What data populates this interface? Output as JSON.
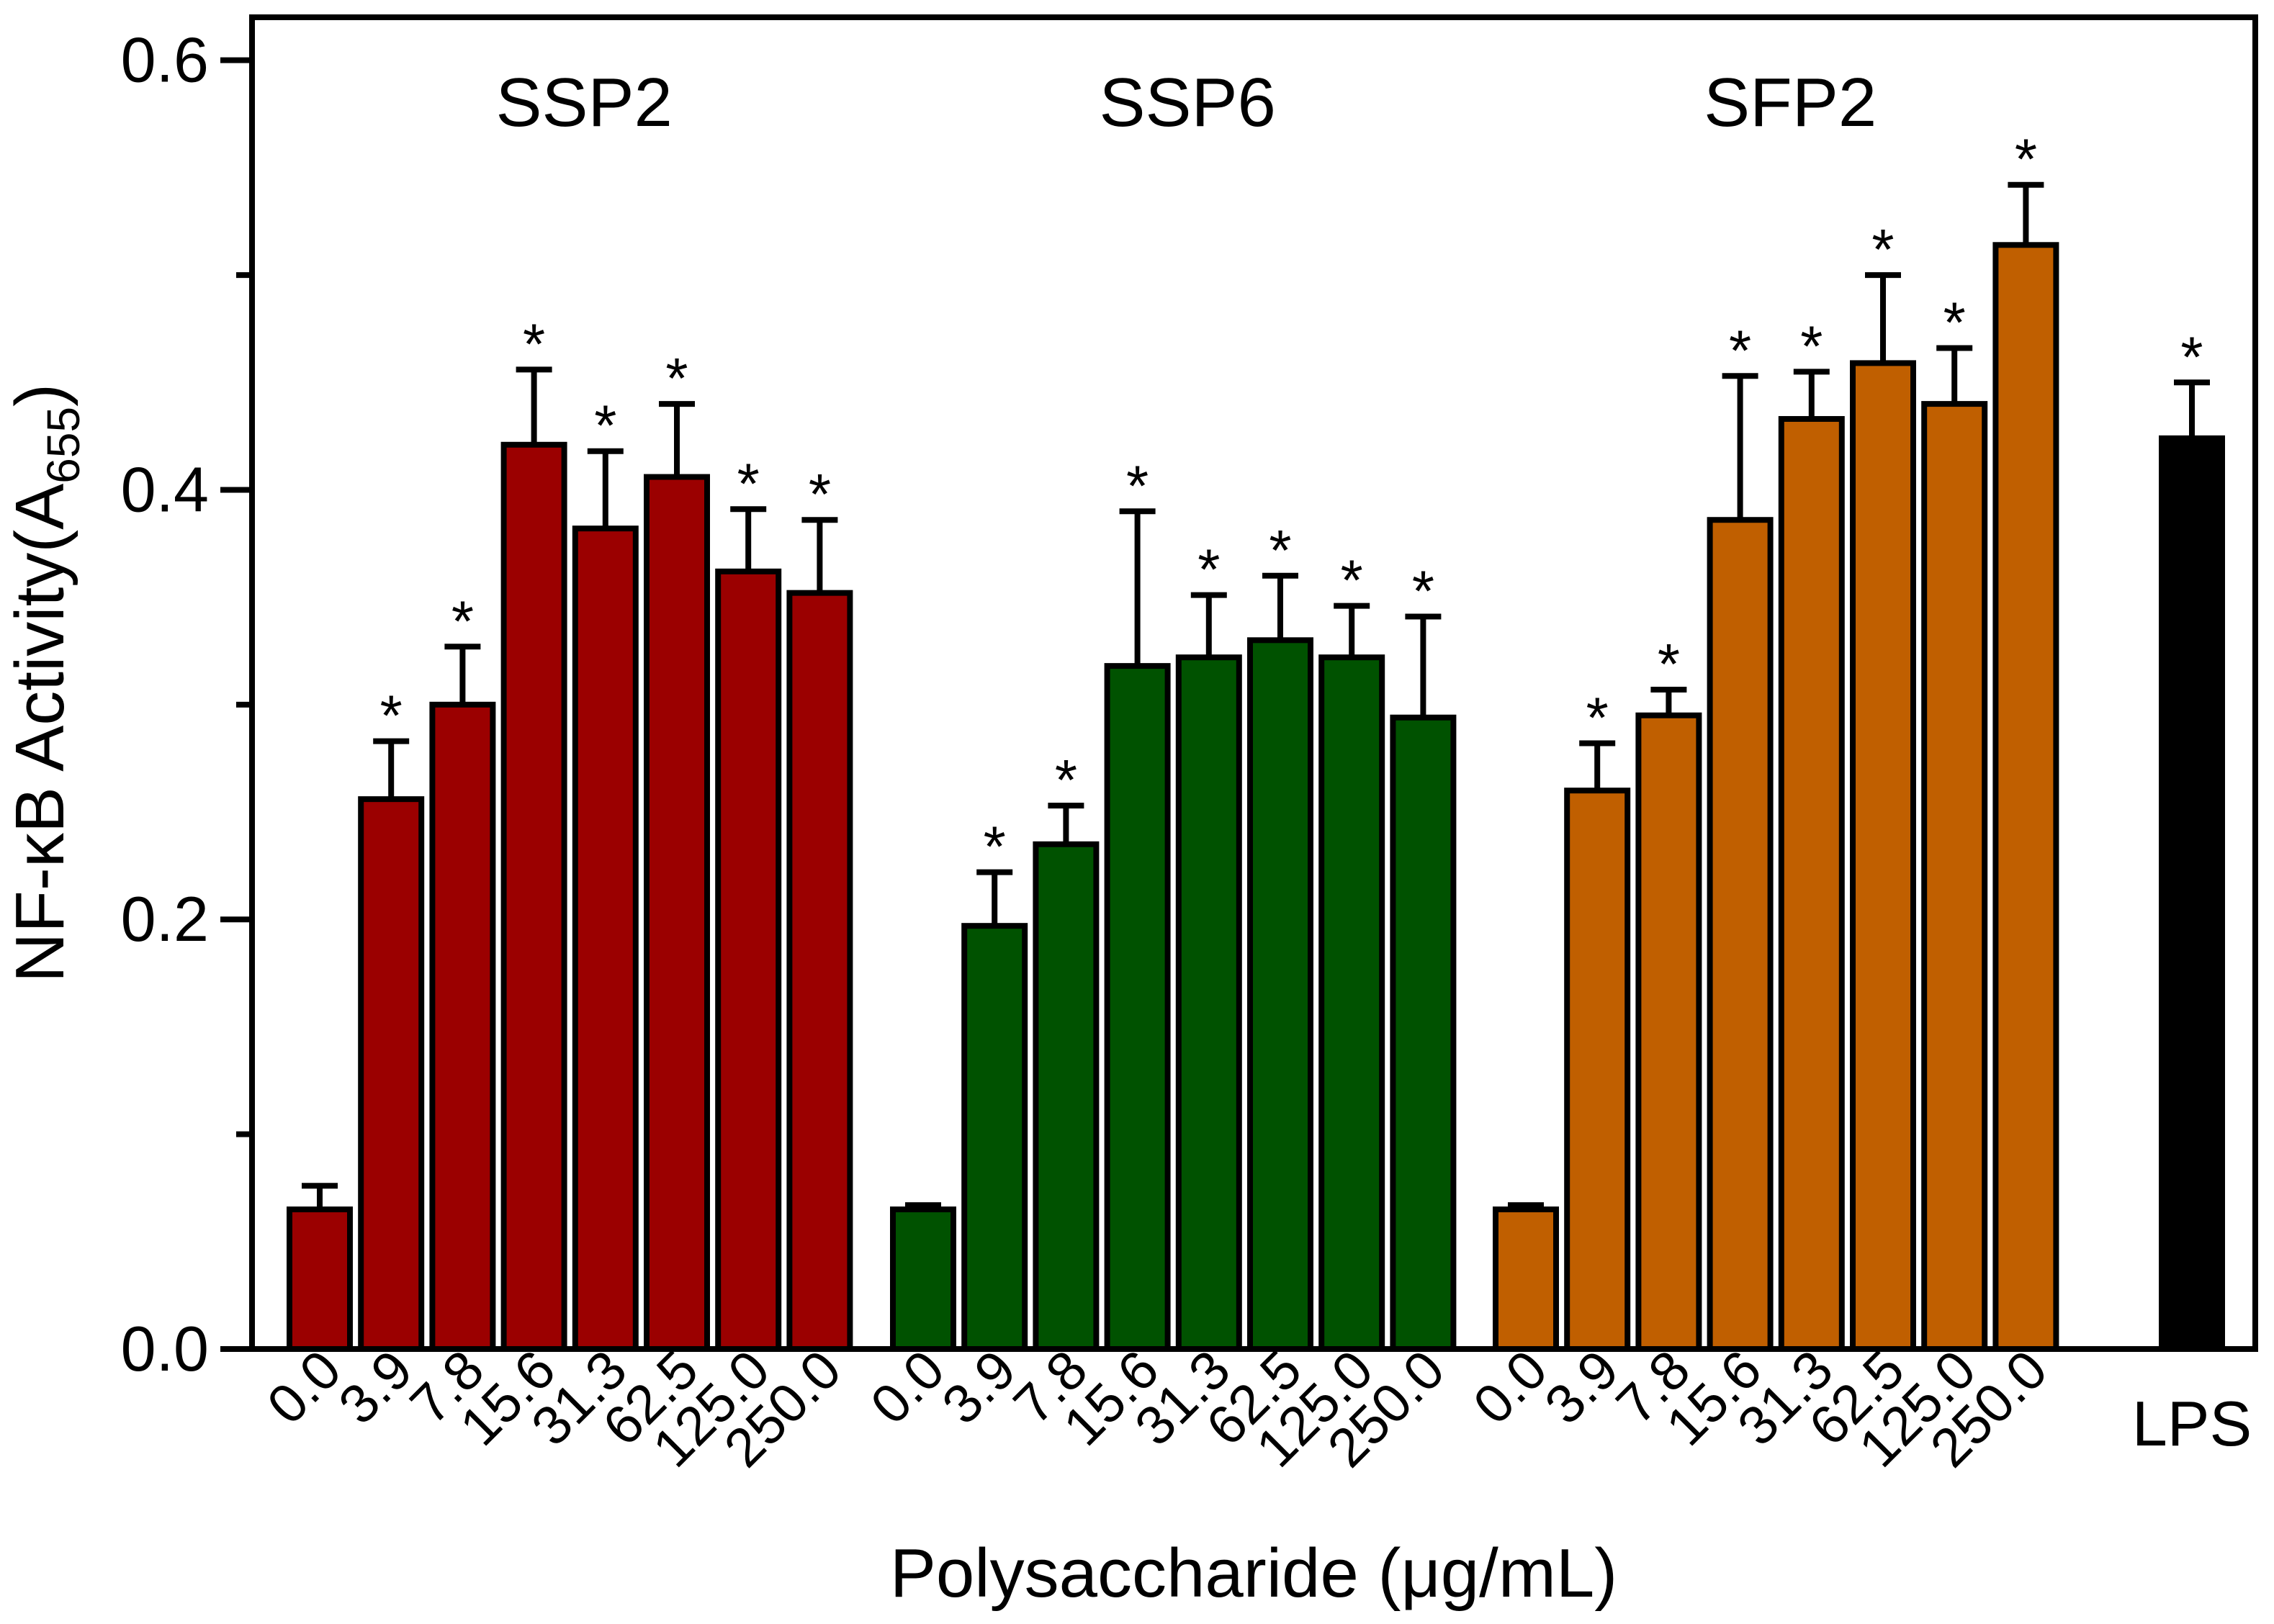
{
  "chart_data": {
    "type": "bar",
    "title": "",
    "xlabel": "Polysaccharide (μg/mL)",
    "ylabel": "NF-κB Activity(A",
    "ylabel_subscript": "655",
    "ylabel_close": ")",
    "ylim": [
      0,
      0.62
    ],
    "yticks": [
      "0.0",
      "0.2",
      "0.4",
      "0.6"
    ],
    "yticks_values": [
      0.0,
      0.2,
      0.4,
      0.6
    ],
    "grid": false,
    "significance_marker": "*",
    "groups": [
      {
        "name": "SSP2",
        "color": "#9b0000",
        "categories": [
          "0.0",
          "3.9",
          "7.8",
          "15.6",
          "31.3",
          "62.5",
          "125.0",
          "250.0"
        ],
        "values": [
          0.065,
          0.256,
          0.3,
          0.421,
          0.382,
          0.406,
          0.362,
          0.352
        ],
        "errors": [
          0.011,
          0.027,
          0.027,
          0.035,
          0.036,
          0.034,
          0.029,
          0.034
        ],
        "significant": [
          false,
          true,
          true,
          true,
          true,
          true,
          true,
          true
        ]
      },
      {
        "name": "SSP6",
        "color": "#005200",
        "categories": [
          "0.0",
          "3.9",
          "7.8",
          "15.6",
          "31.3",
          "62.5",
          "125.0",
          "250.0"
        ],
        "values": [
          0.065,
          0.197,
          0.235,
          0.318,
          0.322,
          0.33,
          0.322,
          0.294
        ],
        "errors": [
          0.002,
          0.025,
          0.018,
          0.072,
          0.029,
          0.03,
          0.024,
          0.047
        ],
        "significant": [
          false,
          true,
          true,
          true,
          true,
          true,
          true,
          true
        ]
      },
      {
        "name": "SFP2",
        "color": "#c05f00",
        "categories": [
          "0.0",
          "3.9",
          "7.8",
          "15.6",
          "31.3",
          "62.5",
          "125.0",
          "250.0"
        ],
        "values": [
          0.065,
          0.26,
          0.295,
          0.386,
          0.433,
          0.459,
          0.44,
          0.514
        ],
        "errors": [
          0.002,
          0.022,
          0.012,
          0.067,
          0.022,
          0.041,
          0.026,
          0.028
        ],
        "significant": [
          false,
          true,
          true,
          true,
          true,
          true,
          true,
          true
        ]
      },
      {
        "name": "",
        "color": "#000000",
        "categories": [
          "LPS"
        ],
        "values": [
          0.424
        ],
        "errors": [
          0.026
        ],
        "significant": [
          true
        ]
      }
    ]
  }
}
